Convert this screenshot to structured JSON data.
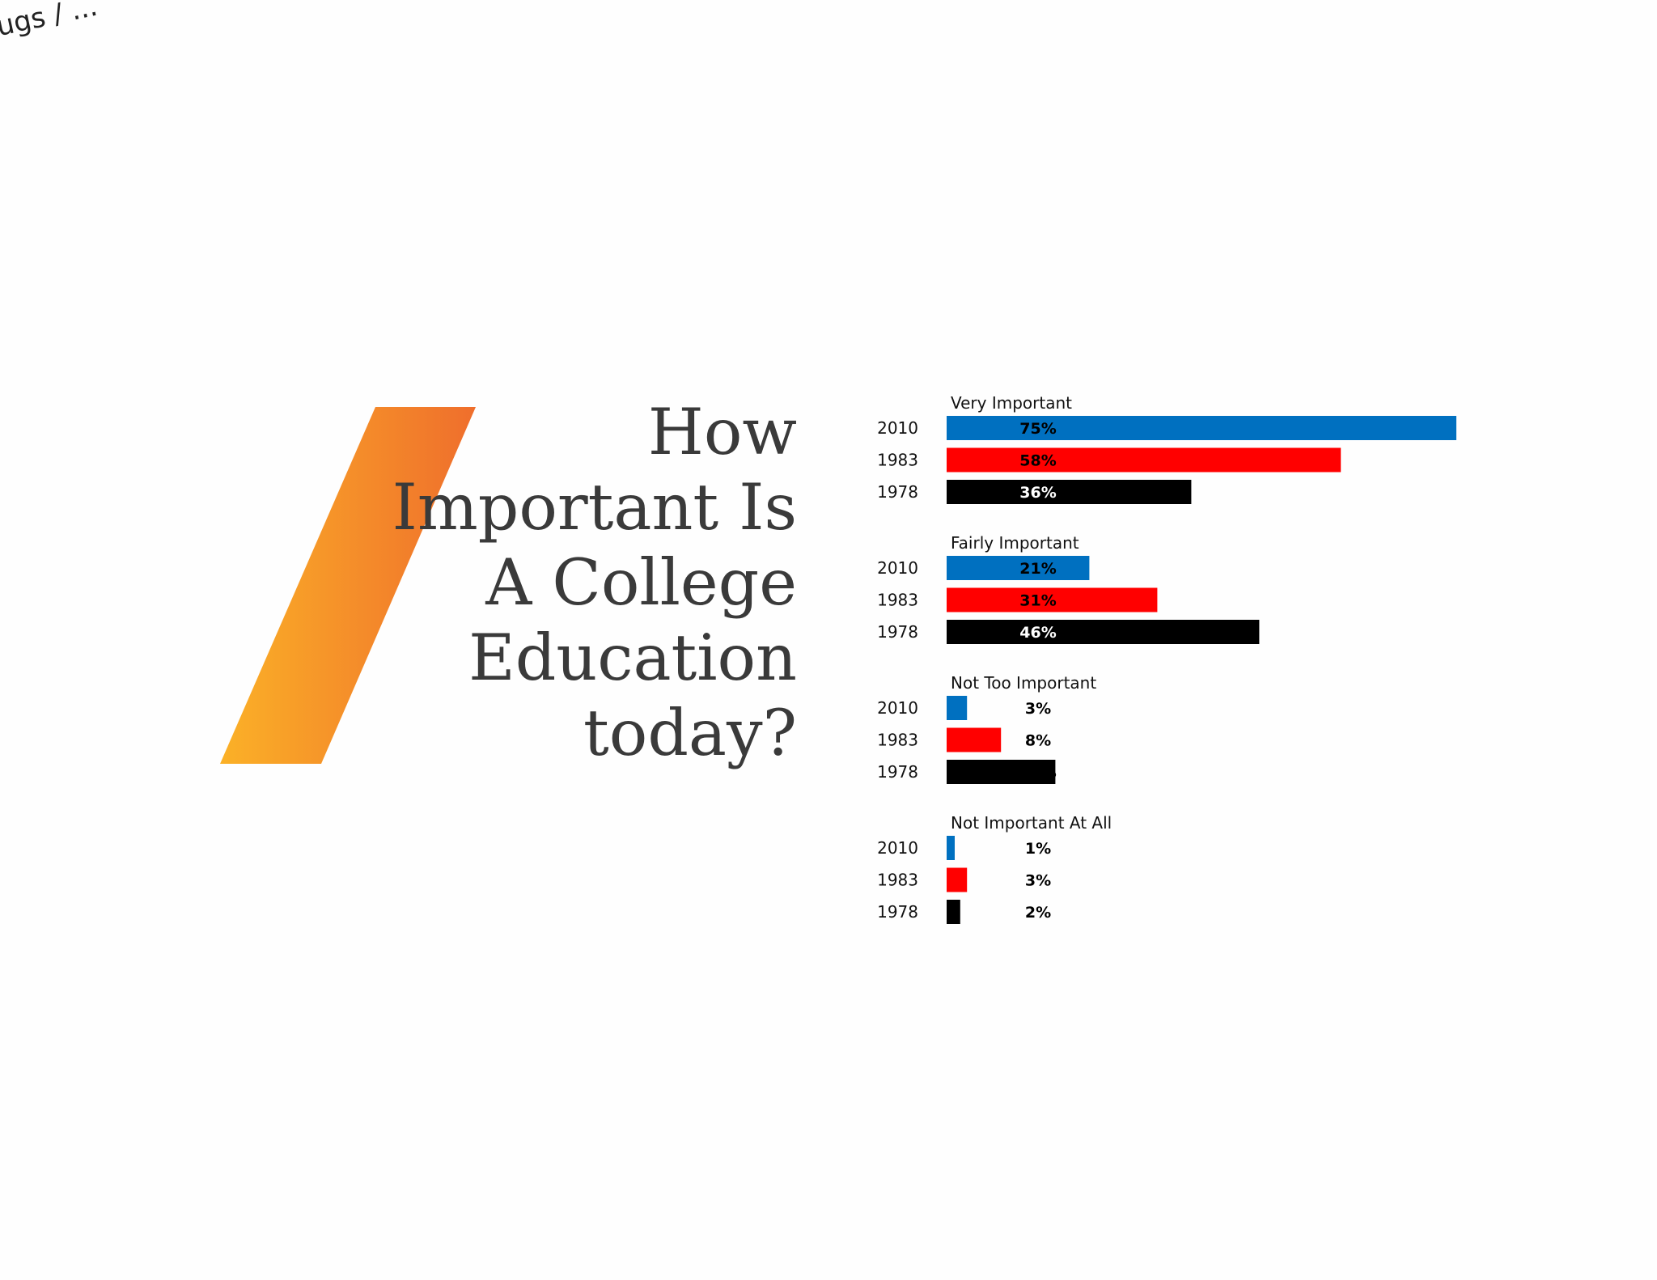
{
  "corner_text": "ugs / ...",
  "title_lines": [
    "How",
    "Important Is",
    "A College",
    "Education",
    "today?"
  ],
  "colors": {
    "stripe_start": "#FBB127",
    "stripe_end": "#EF6E2C",
    "title": "#3A3A3A",
    "2010": "#0070C0",
    "1983": "#FF0000",
    "1978": "#000000"
  },
  "chart_data": {
    "type": "bar",
    "orientation": "horizontal",
    "title": "",
    "xlabel": "",
    "ylabel": "",
    "xlim": [
      0,
      75
    ],
    "grid": false,
    "legend": "none",
    "years": [
      "2010",
      "1983",
      "1978"
    ],
    "groups": [
      {
        "label": "Very Important",
        "bars": [
          {
            "year": "2010",
            "value": 75,
            "label": "75%"
          },
          {
            "year": "1983",
            "value": 58,
            "label": "58%"
          },
          {
            "year": "1978",
            "value": 36,
            "label": "36%"
          }
        ]
      },
      {
        "label": "Fairly Important",
        "bars": [
          {
            "year": "2010",
            "value": 21,
            "label": "21%"
          },
          {
            "year": "1983",
            "value": 31,
            "label": "31%"
          },
          {
            "year": "1978",
            "value": 46,
            "label": "46%"
          }
        ]
      },
      {
        "label": "Not Too Important",
        "bars": [
          {
            "year": "2010",
            "value": 3,
            "label": "3%"
          },
          {
            "year": "1983",
            "value": 8,
            "label": "8%"
          },
          {
            "year": "1978",
            "value": 16,
            "label": "16%"
          }
        ]
      },
      {
        "label": "Not Important At All",
        "bars": [
          {
            "year": "2010",
            "value": 1,
            "label": "1%"
          },
          {
            "year": "1983",
            "value": 3,
            "label": "3%"
          },
          {
            "year": "1978",
            "value": 2,
            "label": "2%"
          }
        ]
      }
    ]
  }
}
